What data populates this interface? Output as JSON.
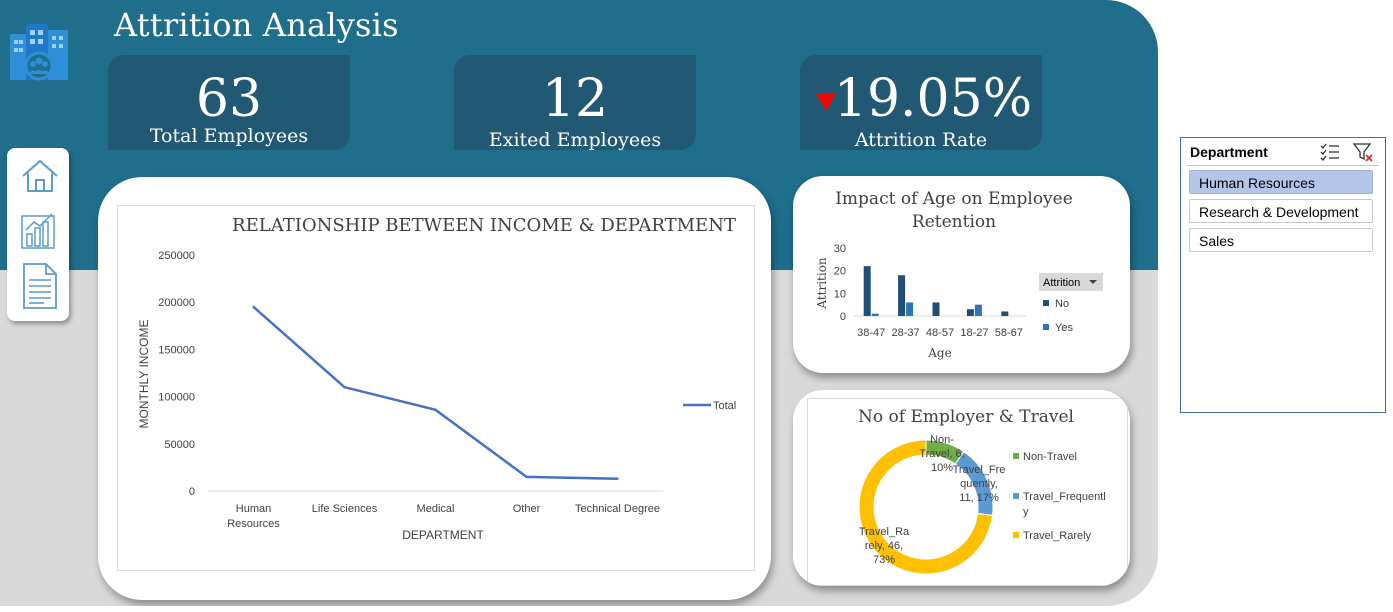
{
  "title": "Attrition Analysis",
  "kpis": [
    {
      "value": "63",
      "label": "Total Employees"
    },
    {
      "value": "12",
      "label": "Exited Employees"
    },
    {
      "value": "19.05%",
      "label": "Attrition Rate"
    }
  ],
  "icons": {
    "logo": "building-people-icon",
    "nav": [
      "home-icon",
      "chart-report-icon",
      "document-icon"
    ],
    "slicer": [
      "multi-select-icon",
      "clear-filter-icon"
    ]
  },
  "slicer": {
    "title": "Department",
    "items": [
      "Human Resources",
      "Research & Development",
      "Sales"
    ],
    "selected": "Human Resources"
  },
  "colors": {
    "header": "#1f6e8c",
    "kpi_box": "#215873",
    "line": "#4472c4",
    "attrition_no": "#1f4e79",
    "attrition_yes": "#2e75b6",
    "non_travel": "#70ad47",
    "travel_frequently": "#5b9bd5",
    "travel_rarely": "#ffc000",
    "down_arrow": "#ff0000"
  },
  "chart_data": [
    {
      "type": "line",
      "title": "RELATIONSHIP BETWEEN INCOME & DEPARTMENT",
      "xlabel": "DEPARTMENT",
      "ylabel": "MONTHLY INCOME",
      "categories": [
        "Human Resources",
        "Life Sciences",
        "Medical",
        "Other",
        "Technical Degree"
      ],
      "category_lines": [
        [
          "Human",
          "Resources"
        ],
        [
          "Life Sciences"
        ],
        [
          "Medical"
        ],
        [
          "Other"
        ],
        [
          "Technical Degree"
        ]
      ],
      "series": [
        {
          "name": "Total",
          "values": [
            195000,
            110000,
            86000,
            15000,
            13000
          ]
        }
      ],
      "ylim": [
        0,
        250000
      ],
      "yticks": [
        "0",
        "50000",
        "100000",
        "150000",
        "200000",
        "250000"
      ],
      "yticks_num": [
        0,
        50000,
        100000,
        150000,
        200000,
        250000
      ],
      "grid": false,
      "legend": "right"
    },
    {
      "type": "bar",
      "title": "Impact of Age on Employee Retention",
      "title_lines": [
        "Impact of Age on Employee",
        "Retention"
      ],
      "xlabel": "Age",
      "ylabel": "Attrition",
      "categories": [
        "38-47",
        "28-37",
        "48-57",
        "18-27",
        "58-67"
      ],
      "legend_title": "Attrition",
      "series": [
        {
          "name": "No",
          "values": [
            22,
            18,
            6,
            3,
            2
          ]
        },
        {
          "name": "Yes",
          "values": [
            1,
            6,
            0,
            5,
            0
          ]
        }
      ],
      "ylim": [
        0,
        30
      ],
      "yticks": [
        "0",
        "10",
        "20",
        "30"
      ],
      "yticks_num": [
        0,
        10,
        20,
        30
      ],
      "grid": false,
      "legend": "right"
    },
    {
      "type": "pie",
      "title": "No of Employer & Travel",
      "categories": [
        "Non-Travel",
        "Travel_Frequently",
        "Travel_Rarely"
      ],
      "legend_lines": [
        [
          "Non-Travel"
        ],
        [
          "Travel_Frequentl",
          "y"
        ],
        [
          "Travel_Rarely"
        ]
      ],
      "values": [
        6,
        11,
        46
      ],
      "percent_labels": [
        "10%",
        "17%",
        "73%"
      ],
      "data_label_lines": [
        [
          "Non-",
          "Travel, 6,",
          "10%"
        ],
        [
          "Travel_Fre",
          "quently,",
          "11, 17%"
        ],
        [
          "Travel_Ra",
          "rely, 46,",
          "73%"
        ]
      ],
      "donut": true,
      "legend": "right"
    }
  ]
}
